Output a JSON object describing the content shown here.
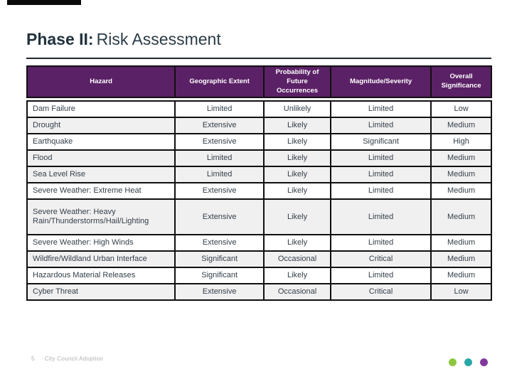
{
  "slide": {
    "title": {
      "bold": "Phase II:",
      "rest": "Risk Assessment"
    },
    "footer": {
      "page_number": "5",
      "text": "City Council Adoption"
    },
    "dots": [
      {
        "name": "green-dot",
        "color": "#8cc63e"
      },
      {
        "name": "teal-dot",
        "color": "#29a7a7"
      },
      {
        "name": "purple-dot",
        "color": "#80399b"
      }
    ],
    "colors": {
      "header_bg": "#5b2166",
      "header_text": "#ffffff",
      "title_text": "#22333f",
      "body_text": "#333f48",
      "shaded_row_bg": "#f1f0f1",
      "border": "#101010",
      "footer_text": "#b0afaf"
    }
  },
  "table": {
    "columns": [
      "Hazard",
      "Geographic Extent",
      "Probability of Future Occurrences",
      "Magnitude/Severity",
      "Overall Significance"
    ],
    "rows": [
      {
        "hazard": "Dam Failure",
        "geographic_extent": "Limited",
        "probability": "Unlikely",
        "magnitude": "Limited",
        "significance": "Low",
        "shaded": false
      },
      {
        "hazard": "Drought",
        "geographic_extent": "Extensive",
        "probability": "Likely",
        "magnitude": "Limited",
        "significance": "Medium",
        "shaded": true
      },
      {
        "hazard": "Earthquake",
        "geographic_extent": "Extensive",
        "probability": "Likely",
        "magnitude": "Significant",
        "significance": "High",
        "shaded": false
      },
      {
        "hazard": "Flood",
        "geographic_extent": "Limited",
        "probability": "Likely",
        "magnitude": "Limited",
        "significance": "Medium",
        "shaded": true
      },
      {
        "hazard": "Sea Level Rise",
        "geographic_extent": "Limited",
        "probability": "Likely",
        "magnitude": "Limited",
        "significance": "Medium",
        "shaded": true
      },
      {
        "hazard": "Severe Weather: Extreme Heat",
        "geographic_extent": "Extensive",
        "probability": "Likely",
        "magnitude": "Limited",
        "significance": "Medium",
        "shaded": false
      },
      {
        "hazard": "Severe Weather: Heavy\nRain/Thunderstorms/Hail/Lighting",
        "geographic_extent": "Extensive",
        "probability": "Likely",
        "magnitude": "Limited",
        "significance": "Medium",
        "shaded": true
      },
      {
        "hazard": "Severe Weather: High Winds",
        "geographic_extent": "Extensive",
        "probability": "Likely",
        "magnitude": "Limited",
        "significance": "Medium",
        "shaded": false
      },
      {
        "hazard": "Wildfire/Wildland Urban Interface",
        "geographic_extent": "Significant",
        "probability": "Occasional",
        "magnitude": "Critical",
        "significance": "Medium",
        "shaded": true
      },
      {
        "hazard": "Hazardous Material Releases",
        "geographic_extent": "Significant",
        "probability": "Likely",
        "magnitude": "Limited",
        "significance": "Medium",
        "shaded": false
      },
      {
        "hazard": "Cyber Threat",
        "geographic_extent": "Extensive",
        "probability": "Occasional",
        "magnitude": "Critical",
        "significance": "Low",
        "shaded": true
      }
    ]
  }
}
